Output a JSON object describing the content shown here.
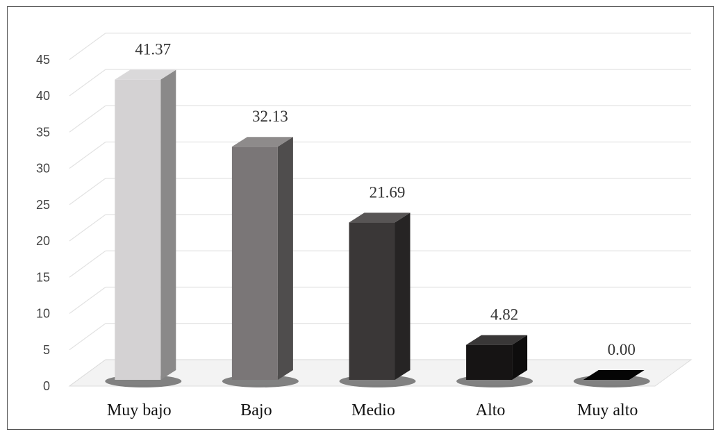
{
  "chart_data": {
    "type": "bar",
    "style": "3d-column",
    "title": "",
    "xlabel": "",
    "ylabel": "",
    "ylim": [
      0,
      45
    ],
    "yticks": [
      0,
      5,
      10,
      15,
      20,
      25,
      30,
      35,
      40,
      45
    ],
    "grid": true,
    "legend": "none",
    "categories": [
      "Muy bajo",
      "Bajo",
      "Medio",
      "Alto",
      "Muy alto"
    ],
    "values": [
      41.37,
      32.13,
      21.69,
      4.82,
      0.0
    ],
    "data_labels": [
      "41.37",
      "32.13",
      "21.69",
      "4.82",
      "0.00"
    ],
    "colors": [
      "#d4d2d3",
      "#7a7677",
      "#3a3737",
      "#161414",
      "#050505"
    ]
  }
}
